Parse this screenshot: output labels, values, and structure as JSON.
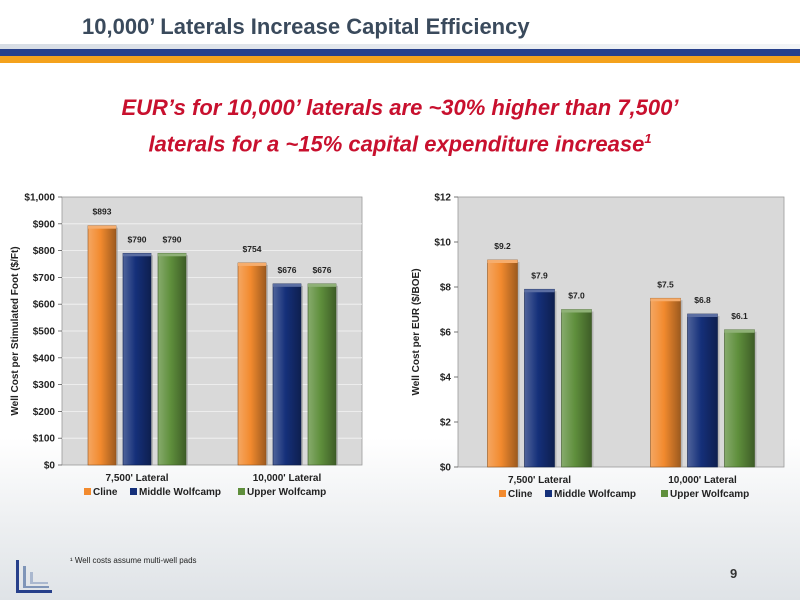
{
  "page": {
    "title": "10,000’ Laterals Increase Capital Efficiency",
    "headline_line1": "EUR’s for 10,000’ laterals are ~30% higher than 7,500’",
    "headline_line2": "laterals for a ~15% capital expenditure increase",
    "headline_sup": "1",
    "footnote": "¹ Well costs assume multi-well pads",
    "page_number": "9"
  },
  "colors": {
    "cline": "#f28a2e",
    "middle_wolfcamp": "#15307a",
    "upper_wolfcamp": "#5f8f3c",
    "plot_bg": "#d9d9d9",
    "brand_blue": "#27408b",
    "brand_orange": "#f4a21c"
  },
  "chart_data": [
    {
      "type": "bar",
      "categories": [
        "7,500' Lateral",
        "10,000' Lateral"
      ],
      "series": [
        {
          "name": "Cline",
          "values": [
            893,
            754
          ],
          "labels": [
            "$893",
            "$754"
          ]
        },
        {
          "name": "Middle Wolfcamp",
          "values": [
            790,
            676
          ],
          "labels": [
            "$790",
            "$676"
          ]
        },
        {
          "name": "Upper Wolfcamp",
          "values": [
            790,
            676
          ],
          "labels": [
            "$790",
            "$676"
          ]
        }
      ],
      "ylabel": "Well Cost per Stimulated Foot ($/Ft)",
      "ylim": [
        0,
        1000
      ],
      "yticks": [
        0,
        100,
        200,
        300,
        400,
        500,
        600,
        700,
        800,
        900,
        1000
      ],
      "ytick_labels": [
        "$0",
        "$100",
        "$200",
        "$300",
        "$400",
        "$500",
        "$600",
        "$700",
        "$800",
        "$900",
        "$1,000"
      ],
      "grid": true,
      "legend": "bottom"
    },
    {
      "type": "bar",
      "categories": [
        "7,500' Lateral",
        "10,000' Lateral"
      ],
      "series": [
        {
          "name": "Cline",
          "values": [
            9.2,
            7.5
          ],
          "labels": [
            "$9.2",
            "$7.5"
          ]
        },
        {
          "name": "Middle Wolfcamp",
          "values": [
            7.9,
            6.8
          ],
          "labels": [
            "$7.9",
            "$6.8"
          ]
        },
        {
          "name": "Upper Wolfcamp",
          "values": [
            7.0,
            6.1
          ],
          "labels": [
            "$7.0",
            "$6.1"
          ]
        }
      ],
      "ylabel": "Well Cost per EUR ($/BOE)",
      "ylim": [
        0,
        12
      ],
      "yticks": [
        0,
        2,
        4,
        6,
        8,
        10,
        12
      ],
      "ytick_labels": [
        "$0",
        "$2",
        "$4",
        "$6",
        "$8",
        "$10",
        "$12"
      ],
      "grid": false,
      "legend": "bottom"
    }
  ]
}
